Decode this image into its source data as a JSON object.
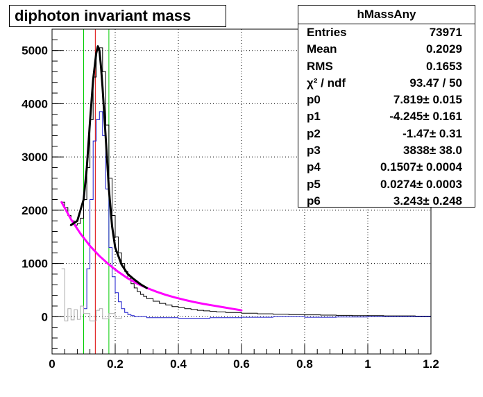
{
  "title": "diphoton invariant mass",
  "stats": {
    "name": "hMassAny",
    "rows": [
      {
        "key": "Entries",
        "value": "73971"
      },
      {
        "key": "Mean",
        "value": "0.2029"
      },
      {
        "key": "RMS",
        "value": "0.1653"
      },
      {
        "key": "χ² / ndf",
        "value": "93.47 / 50"
      },
      {
        "key": "p0",
        "value": "7.819± 0.015"
      },
      {
        "key": "p1",
        "value": "-4.245± 0.161"
      },
      {
        "key": "p2",
        "value": "-1.47± 0.31"
      },
      {
        "key": "p3",
        "value": "3838± 38.0"
      },
      {
        "key": "p4",
        "value": "0.1507± 0.0004"
      },
      {
        "key": "p5",
        "value": "0.0274± 0.0003"
      },
      {
        "key": "p6",
        "value": "3.243± 0.248"
      }
    ]
  },
  "chart_data": {
    "type": "line",
    "xlim": [
      0,
      1.2
    ],
    "ylim": [
      -700,
      5400
    ],
    "xticks": [
      0,
      0.2,
      0.4,
      0.6,
      0.8,
      1,
      1.2
    ],
    "xtick_labels": [
      "0",
      "0.2",
      "0.4",
      "0.6",
      "0.8",
      "1",
      "1.2"
    ],
    "yticks": [
      0,
      1000,
      2000,
      3000,
      4000,
      5000
    ],
    "ytick_labels": [
      "0",
      "1000",
      "2000",
      "3000",
      "4000",
      "5000"
    ],
    "grid": true,
    "vertical_lines": [
      {
        "x": 0.1,
        "color": "#00cc00"
      },
      {
        "x": 0.18,
        "color": "#00cc00"
      },
      {
        "x": 0.137,
        "color": "#dd0000"
      }
    ],
    "series": [
      {
        "color": "#000000",
        "style": "hist",
        "x": [
          0.03,
          0.04,
          0.05,
          0.06,
          0.07,
          0.08,
          0.09,
          0.1,
          0.11,
          0.12,
          0.13,
          0.14,
          0.15,
          0.16,
          0.17,
          0.18,
          0.19,
          0.2,
          0.21,
          0.22,
          0.23,
          0.24,
          0.25,
          0.26,
          0.27,
          0.28,
          0.29,
          0.3,
          0.32,
          0.34,
          0.36,
          0.38,
          0.4,
          0.42,
          0.44,
          0.46,
          0.48,
          0.5,
          0.52,
          0.55,
          0.6,
          0.65,
          0.7,
          0.75,
          0.8,
          0.85,
          0.9,
          0.95,
          1.0,
          1.05,
          1.1,
          1.15,
          1.2
        ],
        "values": [
          2150,
          2050,
          1900,
          1800,
          1720,
          1750,
          1850,
          2200,
          2800,
          3700,
          4500,
          5000,
          5050,
          4600,
          3600,
          2600,
          1900,
          1500,
          1200,
          1000,
          850,
          720,
          620,
          540,
          470,
          420,
          380,
          340,
          290,
          250,
          220,
          190,
          170,
          150,
          135,
          120,
          110,
          100,
          90,
          80,
          65,
          55,
          45,
          40,
          35,
          30,
          25,
          20,
          20,
          15,
          15,
          10,
          10
        ]
      },
      {
        "color": "#1a1acc",
        "style": "hist",
        "x": [
          0.1,
          0.11,
          0.12,
          0.13,
          0.14,
          0.15,
          0.16,
          0.17,
          0.18,
          0.19,
          0.2,
          0.21,
          0.22,
          0.23,
          0.24,
          0.25,
          0.26,
          0.3,
          0.4,
          0.5,
          0.6,
          0.7,
          0.8,
          0.9,
          1.0,
          1.1,
          1.2
        ],
        "values": [
          150,
          900,
          2200,
          3300,
          3700,
          3850,
          3400,
          2400,
          1300,
          750,
          450,
          280,
          150,
          80,
          40,
          20,
          0,
          -20,
          -30,
          -20,
          -10,
          0,
          -10,
          -5,
          0,
          0,
          0
        ]
      },
      {
        "color": "#aaaaaa",
        "style": "hist",
        "x": [
          0.03,
          0.04,
          0.05,
          0.06,
          0.07,
          0.08,
          0.09,
          0.1,
          0.12,
          0.14,
          0.15,
          0.16,
          0.18,
          0.2,
          0.22
        ],
        "values": [
          900,
          -80,
          150,
          -60,
          130,
          -50,
          200,
          60,
          -80,
          120,
          150,
          -40,
          60,
          -30,
          0
        ]
      },
      {
        "color": "#ff00ff",
        "style": "fit",
        "x": [
          0.03,
          0.06,
          0.09,
          0.12,
          0.15,
          0.18,
          0.21,
          0.24,
          0.27,
          0.3,
          0.33,
          0.36,
          0.39,
          0.42,
          0.45,
          0.48,
          0.51,
          0.54,
          0.57,
          0.6
        ],
        "values": [
          2150,
          1830,
          1560,
          1330,
          1140,
          980,
          840,
          720,
          620,
          540,
          470,
          410,
          360,
          315,
          275,
          240,
          210,
          180,
          150,
          120
        ]
      },
      {
        "color": "#000000",
        "style": "fit-bold",
        "x": [
          0.06,
          0.08,
          0.1,
          0.11,
          0.12,
          0.13,
          0.14,
          0.145,
          0.15,
          0.155,
          0.16,
          0.17,
          0.18,
          0.19,
          0.2,
          0.22,
          0.24,
          0.26,
          0.28,
          0.3
        ],
        "values": [
          1720,
          1800,
          2200,
          2800,
          3650,
          4450,
          4950,
          5080,
          5000,
          4700,
          4300,
          3350,
          2400,
          1700,
          1300,
          980,
          800,
          700,
          610,
          540
        ]
      }
    ]
  }
}
